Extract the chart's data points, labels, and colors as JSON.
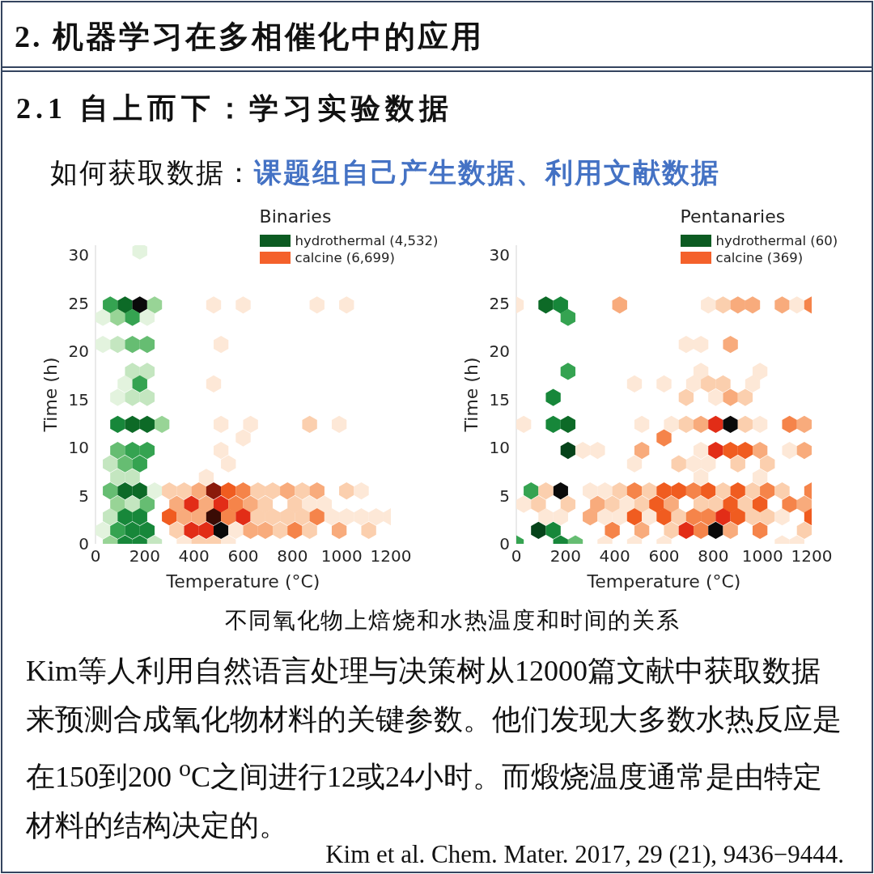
{
  "chart_data": [
    {
      "type": "other",
      "title": "2. 机器学习在多相催化中的应用",
      "subtitle": "2.1 自上而下：学习实验数据",
      "annotations": [
        "如何获取数据：",
        "课题组自己产生数据、利用文献数据"
      ]
    },
    {
      "type": "scatter",
      "legend_title": "Binaries",
      "xlabel": "Temperature (°C)",
      "ylabel": "Time (h)",
      "xlim": [
        0,
        1200
      ],
      "xticks": [
        0,
        200,
        400,
        600,
        800,
        1000,
        1200
      ],
      "ylim": [
        0,
        31
      ],
      "yticks": [
        0,
        5,
        10,
        15,
        20,
        25,
        30
      ],
      "legend": "top right",
      "series": [
        {
          "name": "hydrothermal (4,532)",
          "color": "#0c5b22",
          "x": [
            180,
            60,
            120,
            180,
            240,
            30,
            90,
            150,
            210,
            30,
            90,
            150,
            210,
            150,
            210,
            120,
            180,
            90,
            150,
            210,
            90,
            150,
            210,
            270,
            90,
            150,
            210,
            60,
            120,
            180,
            90,
            150,
            60,
            120,
            180,
            240,
            90,
            150,
            210,
            60,
            120,
            180,
            30,
            90,
            150,
            210,
            60,
            120,
            180,
            240
          ],
          "values": [
            30.4,
            24.8,
            24.8,
            24.8,
            24.8,
            23.5,
            23.5,
            23.5,
            23.5,
            20.7,
            20.7,
            20.7,
            20.7,
            17.9,
            17.9,
            16.6,
            16.6,
            15.2,
            15.2,
            15.2,
            12.4,
            12.4,
            12.4,
            12.4,
            9.7,
            9.7,
            9.7,
            8.3,
            8.3,
            8.3,
            6.9,
            6.9,
            5.5,
            5.5,
            5.5,
            5.5,
            4.1,
            4.1,
            4.1,
            2.8,
            2.8,
            2.8,
            1.4,
            1.4,
            1.4,
            1.4,
            0,
            0,
            0,
            0
          ],
          "colors": [
            "#e3f3de",
            "#35a351",
            "#0d6a27",
            "#0a0a0a",
            "#98d496",
            "#e3f3de",
            "#98d496",
            "#35a351",
            "#e3f3de",
            "#e3f3de",
            "#c4e6c0",
            "#66bd72",
            "#66bd72",
            "#c4e6c0",
            "#c4e6c0",
            "#e3f3de",
            "#35a351",
            "#e3f3de",
            "#c4e6c0",
            "#c4e6c0",
            "#17873a",
            "#0d6a27",
            "#0d6a27",
            "#98d496",
            "#66bd72",
            "#35a351",
            "#35a351",
            "#c4e6c0",
            "#66bd72",
            "#35a351",
            "#c4e6c0",
            "#c4e6c0",
            "#66bd72",
            "#0d6a27",
            "#0d6a27",
            "#e3f3de",
            "#98d496",
            "#c4e6c0",
            "#66bd72",
            "#c4e6c0",
            "#17873a",
            "#17873a",
            "#e3f3de",
            "#35a351",
            "#17873a",
            "#17873a",
            "#98d496",
            "#17873a",
            "#17873a",
            "#c4e6c0"
          ]
        },
        {
          "name": "calcine (6,699)",
          "color": "#f4612b",
          "x": [
            480,
            600,
            900,
            1020,
            510,
            480,
            510,
            630,
            870,
            990,
            600,
            510,
            540,
            450,
            300,
            360,
            420,
            480,
            540,
            600,
            660,
            720,
            780,
            840,
            900,
            1020,
            1080,
            330,
            390,
            450,
            510,
            570,
            630,
            690,
            810,
            870,
            930,
            300,
            360,
            420,
            480,
            540,
            600,
            660,
            720,
            780,
            840,
            900,
            960,
            1020,
            1080,
            1140,
            1200,
            330,
            390,
            450,
            510,
            570,
            630,
            690,
            750,
            810,
            870,
            990,
            1110,
            360,
            420,
            480,
            540
          ],
          "values": [
            24.8,
            24.8,
            24.8,
            24.8,
            20.7,
            16.6,
            12.4,
            12.4,
            12.4,
            12.4,
            11,
            9.7,
            8.3,
            6.9,
            5.5,
            5.5,
            5.5,
            5.5,
            5.5,
            5.5,
            5.5,
            5.5,
            5.5,
            5.5,
            5.5,
            5.5,
            5.5,
            4.1,
            4.1,
            4.1,
            4.1,
            4.1,
            4.1,
            4.1,
            4.1,
            4.1,
            4.1,
            2.8,
            2.8,
            2.8,
            2.8,
            2.8,
            2.8,
            2.8,
            2.8,
            2.8,
            2.8,
            2.8,
            2.8,
            2.8,
            2.8,
            2.8,
            2.8,
            1.4,
            1.4,
            1.4,
            1.4,
            1.4,
            1.4,
            1.4,
            1.4,
            1.4,
            1.4,
            1.4,
            1.4,
            0,
            0,
            0,
            0
          ],
          "colors": [
            "#fde8d7",
            "#fde8d7",
            "#fde8d7",
            "#fde8d7",
            "#fde8d7",
            "#fde8d7",
            "#fde8d7",
            "#fde8d7",
            "#fbcfae",
            "#fde8d7",
            "#fde8d7",
            "#fde8d7",
            "#fde8d7",
            "#fde8d7",
            "#fbcfae",
            "#fbcfae",
            "#f8ab7c",
            "#8b1a0b",
            "#f05c20",
            "#f5844a",
            "#fbcfae",
            "#fbcfae",
            "#f8ab7c",
            "#fbcfae",
            "#f8ab7c",
            "#fbcfae",
            "#fde8d7",
            "#f8ab7c",
            "#e22d17",
            "#f8ab7c",
            "#e22d17",
            "#f5844a",
            "#f8ab7c",
            "#fbcfae",
            "#fbcfae",
            "#fde8d7",
            "#fde8d7",
            "#f05c20",
            "#f8ab7c",
            "#f8ab7c",
            "#3a0c05",
            "#f5844a",
            "#e22d17",
            "#fbcfae",
            "#fbcfae",
            "#fbcfae",
            "#fbcfae",
            "#f5844a",
            "#fde8d7",
            "#fde8d7",
            "#fde8d7",
            "#fde8d7",
            "#fde8d7",
            "#fbcfae",
            "#e22d17",
            "#e22d17",
            "#0a0a0a",
            "#fde8d7",
            "#f8ab7c",
            "#f8ab7c",
            "#fbcfae",
            "#f5844a",
            "#fbcfae",
            "#f8ab7c",
            "#fbcfae",
            "#fde8d7",
            "#fbcfae",
            "#fbcfae",
            "#fde8d7"
          ]
        }
      ]
    },
    {
      "type": "scatter",
      "legend_title": "Pentanaries",
      "xlabel": "Temperature (°C)",
      "ylabel": "Time (h)",
      "xlim": [
        0,
        1200
      ],
      "xticks": [
        0,
        200,
        400,
        600,
        800,
        1000,
        1200
      ],
      "ylim": [
        0,
        31
      ],
      "yticks": [
        0,
        5,
        10,
        15,
        20,
        25,
        30
      ],
      "legend": "top right",
      "series": [
        {
          "name": "hydrothermal (60)",
          "color": "#0c5b22",
          "x": [
            120,
            180,
            210,
            210,
            150,
            150,
            210,
            210,
            60,
            180,
            90,
            150,
            0,
            180,
            240
          ],
          "values": [
            24.8,
            24.8,
            23.5,
            17.9,
            15.2,
            12.4,
            12.4,
            9.7,
            5.5,
            5.5,
            1.4,
            1.4,
            0,
            0,
            0
          ],
          "colors": [
            "#0d6a27",
            "#17873a",
            "#35a351",
            "#35a351",
            "#17873a",
            "#17873a",
            "#0d6a27",
            "#06431a",
            "#35a351",
            "#0a0a0a",
            "#06431a",
            "#17873a",
            "#35a351",
            "#17873a",
            "#66bd72"
          ]
        },
        {
          "name": "calcine (369)",
          "color": "#f4612b",
          "x": [
            0,
            420,
            780,
            840,
            900,
            960,
            1080,
            1140,
            1200,
            690,
            750,
            870,
            750,
            990,
            480,
            600,
            720,
            780,
            840,
            960,
            690,
            810,
            870,
            930,
            30,
            510,
            630,
            690,
            750,
            810,
            870,
            930,
            990,
            1110,
            1170,
            600,
            270,
            330,
            510,
            750,
            810,
            870,
            930,
            990,
            1110,
            1170,
            480,
            660,
            720,
            780,
            900,
            1020,
            750,
            990,
            120,
            300,
            360,
            420,
            480,
            540,
            600,
            660,
            720,
            780,
            840,
            900,
            960,
            1020,
            1080,
            1200,
            30,
            90,
            210,
            330,
            390,
            450,
            510,
            570,
            630,
            750,
            810,
            870,
            930,
            990,
            1110,
            1170,
            120,
            180,
            300,
            360,
            420,
            480,
            540,
            600,
            660,
            720,
            780,
            840,
            900,
            960,
            1020,
            1080,
            1200,
            390,
            510,
            630,
            690,
            750,
            810,
            870,
            990,
            1170,
            360,
            480,
            600,
            1080,
            1140
          ],
          "values": [
            24.8,
            24.8,
            24.8,
            24.8,
            24.8,
            24.8,
            24.8,
            24.8,
            24.8,
            20.7,
            20.7,
            20.7,
            17.9,
            17.9,
            16.6,
            16.6,
            16.6,
            16.6,
            16.6,
            16.6,
            15.2,
            15.2,
            15.2,
            15.2,
            12.4,
            12.4,
            12.4,
            12.4,
            12.4,
            12.4,
            12.4,
            12.4,
            12.4,
            12.4,
            12.4,
            11,
            9.7,
            9.7,
            9.7,
            9.7,
            9.7,
            9.7,
            9.7,
            9.7,
            9.7,
            9.7,
            8.3,
            8.3,
            8.3,
            8.3,
            8.3,
            8.3,
            6.9,
            6.9,
            5.5,
            5.5,
            5.5,
            5.5,
            5.5,
            5.5,
            5.5,
            5.5,
            5.5,
            5.5,
            5.5,
            5.5,
            5.5,
            5.5,
            5.5,
            5.5,
            4.1,
            4.1,
            4.1,
            4.1,
            4.1,
            4.1,
            4.1,
            4.1,
            4.1,
            4.1,
            4.1,
            4.1,
            4.1,
            4.1,
            4.1,
            4.1,
            2.8,
            2.8,
            2.8,
            2.8,
            2.8,
            2.8,
            2.8,
            2.8,
            2.8,
            2.8,
            2.8,
            2.8,
            2.8,
            2.8,
            2.8,
            2.8,
            2.8,
            1.4,
            1.4,
            1.4,
            1.4,
            1.4,
            1.4,
            1.4,
            1.4,
            1.4,
            0,
            0,
            0,
            0,
            0
          ],
          "colors": [
            "#fde8d7",
            "#f8ab7c",
            "#fde8d7",
            "#fbcfae",
            "#f8ab7c",
            "#f8ab7c",
            "#f8ab7c",
            "#fde8d7",
            "#f5844a",
            "#fde8d7",
            "#fde8d7",
            "#f8ab7c",
            "#fde8d7",
            "#fde8d7",
            "#fde8d7",
            "#fde8d7",
            "#fde8d7",
            "#fbcfae",
            "#fbcfae",
            "#fde8d7",
            "#fbcfae",
            "#fde8d7",
            "#f8ab7c",
            "#fbcfae",
            "#fde8d7",
            "#fde8d7",
            "#fde8d7",
            "#fbcfae",
            "#f8ab7c",
            "#e22d17",
            "#0a0a0a",
            "#fbcfae",
            "#fde8d7",
            "#f5844a",
            "#f8ab7c",
            "#f5844a",
            "#fde8d7",
            "#fde8d7",
            "#f8ab7c",
            "#fde8d7",
            "#e22d17",
            "#f05c20",
            "#f05c20",
            "#f8ab7c",
            "#fde8d7",
            "#f8ab7c",
            "#fde8d7",
            "#fbcfae",
            "#fde8d7",
            "#fde8d7",
            "#fbcfae",
            "#fbcfae",
            "#fde8d7",
            "#fde8d7",
            "#fbcfae",
            "#fde8d7",
            "#fde8d7",
            "#fbcfae",
            "#f5844a",
            "#fbcfae",
            "#f05c20",
            "#f05c20",
            "#f5844a",
            "#f05c20",
            "#fbcfae",
            "#f05c20",
            "#fbcfae",
            "#f5844a",
            "#fbcfae",
            "#f5844a",
            "#fde8d7",
            "#fbcfae",
            "#fbcfae",
            "#f8ab7c",
            "#fbcfae",
            "#fde8d7",
            "#fbcfae",
            "#f05c20",
            "#f8ab7c",
            "#fbcfae",
            "#fbcfae",
            "#f05c20",
            "#fbcfae",
            "#f05c20",
            "#f5844a",
            "#f8ab7c",
            "#fde8d7",
            "#fde8d7",
            "#f8ab7c",
            "#fde8d7",
            "#fde8d7",
            "#f05c20",
            "#fde8d7",
            "#f05c20",
            "#fbcfae",
            "#f5844a",
            "#f5844a",
            "#e22d17",
            "#f05c20",
            "#fbcfae",
            "#fbcfae",
            "#fde8d7",
            "#f05c20",
            "#f5844a",
            "#f8ab7c",
            "#fbcfae",
            "#e22d17",
            "#f5844a",
            "#0a0a0a",
            "#f8ab7c",
            "#f5844a",
            "#fbcfae",
            "#fde8d7",
            "#fde8d7",
            "#fde8d7",
            "#fde8d7",
            "#fde8d7"
          ]
        }
      ]
    },
    {
      "type": "other",
      "annotations": [
        "不同氧化物上焙烧和水热温度和时间的关系",
        "Kim等人利用自然语言处理与决策树从12000篇文献中获取数据来预测合成氧化物材料的关键参数。他们发现大多数水热反应是在150到200 $^{o}$C之间进行12或24小时。而煅烧温度通常是由特定材料的结构决定的。",
        "Kim et al. Chem. Mater. 2017, 29 (21), 9436−9444."
      ]
    }
  ]
}
